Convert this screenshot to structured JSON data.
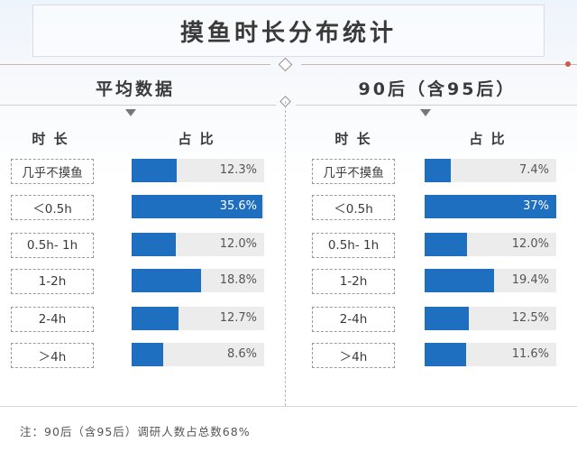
{
  "title": "摸鱼时长分布统计",
  "colors": {
    "bar": "#1f6fc0",
    "track": "#ececec",
    "accent_dot": "#d05a4a"
  },
  "panels": [
    {
      "heading": "平均数据",
      "col_category": "时 长",
      "col_share": "占 比"
    },
    {
      "heading": "90后（含95后）",
      "col_category": "时 长",
      "col_share": "占 比"
    }
  ],
  "chart_data": [
    {
      "type": "bar",
      "title": "平均数据",
      "categories": [
        "几乎不摸鱼",
        "＜0.5h",
        "0.5h- 1h",
        "1-2h",
        "2-4h",
        "＞4h"
      ],
      "values": [
        12.3,
        35.6,
        12.0,
        18.8,
        12.7,
        8.6
      ],
      "labels": [
        "12.3%",
        "35.6%",
        "12.0%",
        "18.8%",
        "12.7%",
        "8.6%"
      ],
      "xlim": [
        0,
        36
      ]
    },
    {
      "type": "bar",
      "title": "90后（含95后）",
      "categories": [
        "几乎不摸鱼",
        "＜0.5h",
        "0.5h- 1h",
        "1-2h",
        "2-4h",
        "＞4h"
      ],
      "values": [
        7.4,
        37,
        12.0,
        19.4,
        12.5,
        11.6
      ],
      "labels": [
        "7.4%",
        "37%",
        "12.0%",
        "19.4%",
        "12.5%",
        "11.6%"
      ],
      "xlim": [
        0,
        37
      ]
    }
  ],
  "footer": "注：90后（含95后）调研人数占总数68%"
}
